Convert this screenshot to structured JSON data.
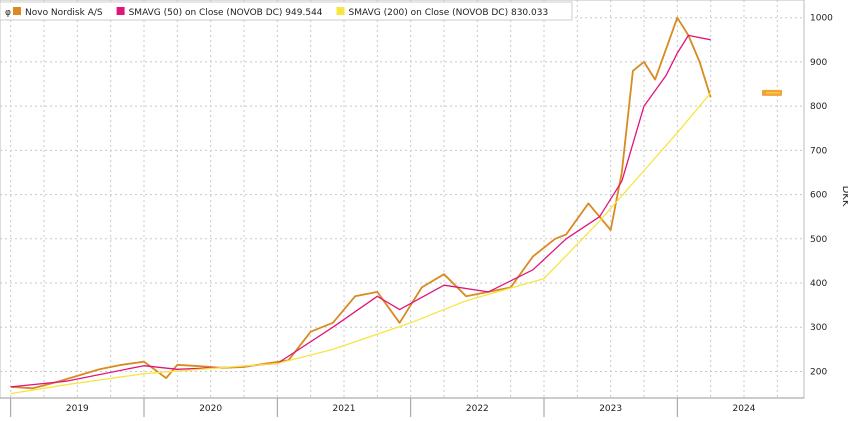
{
  "chart_data": {
    "type": "line",
    "title": "",
    "xlabel": "",
    "ylabel": "DKK",
    "grid": true,
    "legend_placement": "top-left",
    "ylim": [
      140,
      1040
    ],
    "y_ticks": [
      200,
      300,
      400,
      500,
      600,
      700,
      800,
      900,
      1000
    ],
    "x_ticks": [
      "2019",
      "2020",
      "2021",
      "2022",
      "2023",
      "2024"
    ],
    "last_price_marker": 830,
    "legend": [
      {
        "label": "Novo Nordisk A/S",
        "value": ""
      },
      {
        "label": "SMAVG (50)  on Close (NOVOB DC)",
        "value": "949.544"
      },
      {
        "label": "SMAVG (200)  on Close (NOVOB DC)",
        "value": "830.033"
      }
    ],
    "series": [
      {
        "name": "Novo Nordisk A/S",
        "color": "#d98a20",
        "x": [
          "2019-01",
          "2019-03",
          "2019-05",
          "2019-07",
          "2019-09",
          "2019-11",
          "2020-01",
          "2020-03",
          "2020-04",
          "2020-06",
          "2020-08",
          "2020-10",
          "2020-12",
          "2021-02",
          "2021-04",
          "2021-06",
          "2021-08",
          "2021-10",
          "2021-12",
          "2022-02",
          "2022-04",
          "2022-06",
          "2022-08",
          "2022-10",
          "2022-12",
          "2023-02",
          "2023-03",
          "2023-05",
          "2023-07",
          "2023-08",
          "2023-09",
          "2023-10",
          "2023-11",
          "2024-01",
          "2024-02",
          "2024-03",
          "2024-04"
        ],
        "values": [
          165,
          162,
          175,
          190,
          205,
          215,
          222,
          185,
          215,
          212,
          208,
          210,
          218,
          225,
          290,
          310,
          370,
          380,
          310,
          390,
          420,
          370,
          380,
          390,
          460,
          500,
          510,
          580,
          520,
          650,
          880,
          900,
          860,
          1000,
          960,
          900,
          820
        ]
      },
      {
        "name": "SMAVG (50)",
        "color": "#e0157a",
        "x": [
          "2019-01",
          "2019-06",
          "2020-01",
          "2020-04",
          "2020-09",
          "2021-01",
          "2021-06",
          "2021-10",
          "2021-12",
          "2022-04",
          "2022-08",
          "2022-12",
          "2023-03",
          "2023-06",
          "2023-08",
          "2023-10",
          "2023-12",
          "2024-01",
          "2024-02",
          "2024-04"
        ],
        "values": [
          165,
          178,
          213,
          205,
          210,
          218,
          300,
          370,
          340,
          395,
          380,
          430,
          500,
          550,
          630,
          800,
          870,
          920,
          960,
          950
        ]
      },
      {
        "name": "SMAVG (200)",
        "color": "#f5e642",
        "x": [
          "2019-01",
          "2019-06",
          "2020-01",
          "2020-06",
          "2021-01",
          "2021-06",
          "2022-01",
          "2022-06",
          "2023-01",
          "2023-06",
          "2024-01",
          "2024-04"
        ],
        "values": [
          150,
          170,
          195,
          205,
          218,
          250,
          310,
          360,
          410,
          540,
          740,
          830
        ]
      }
    ]
  }
}
